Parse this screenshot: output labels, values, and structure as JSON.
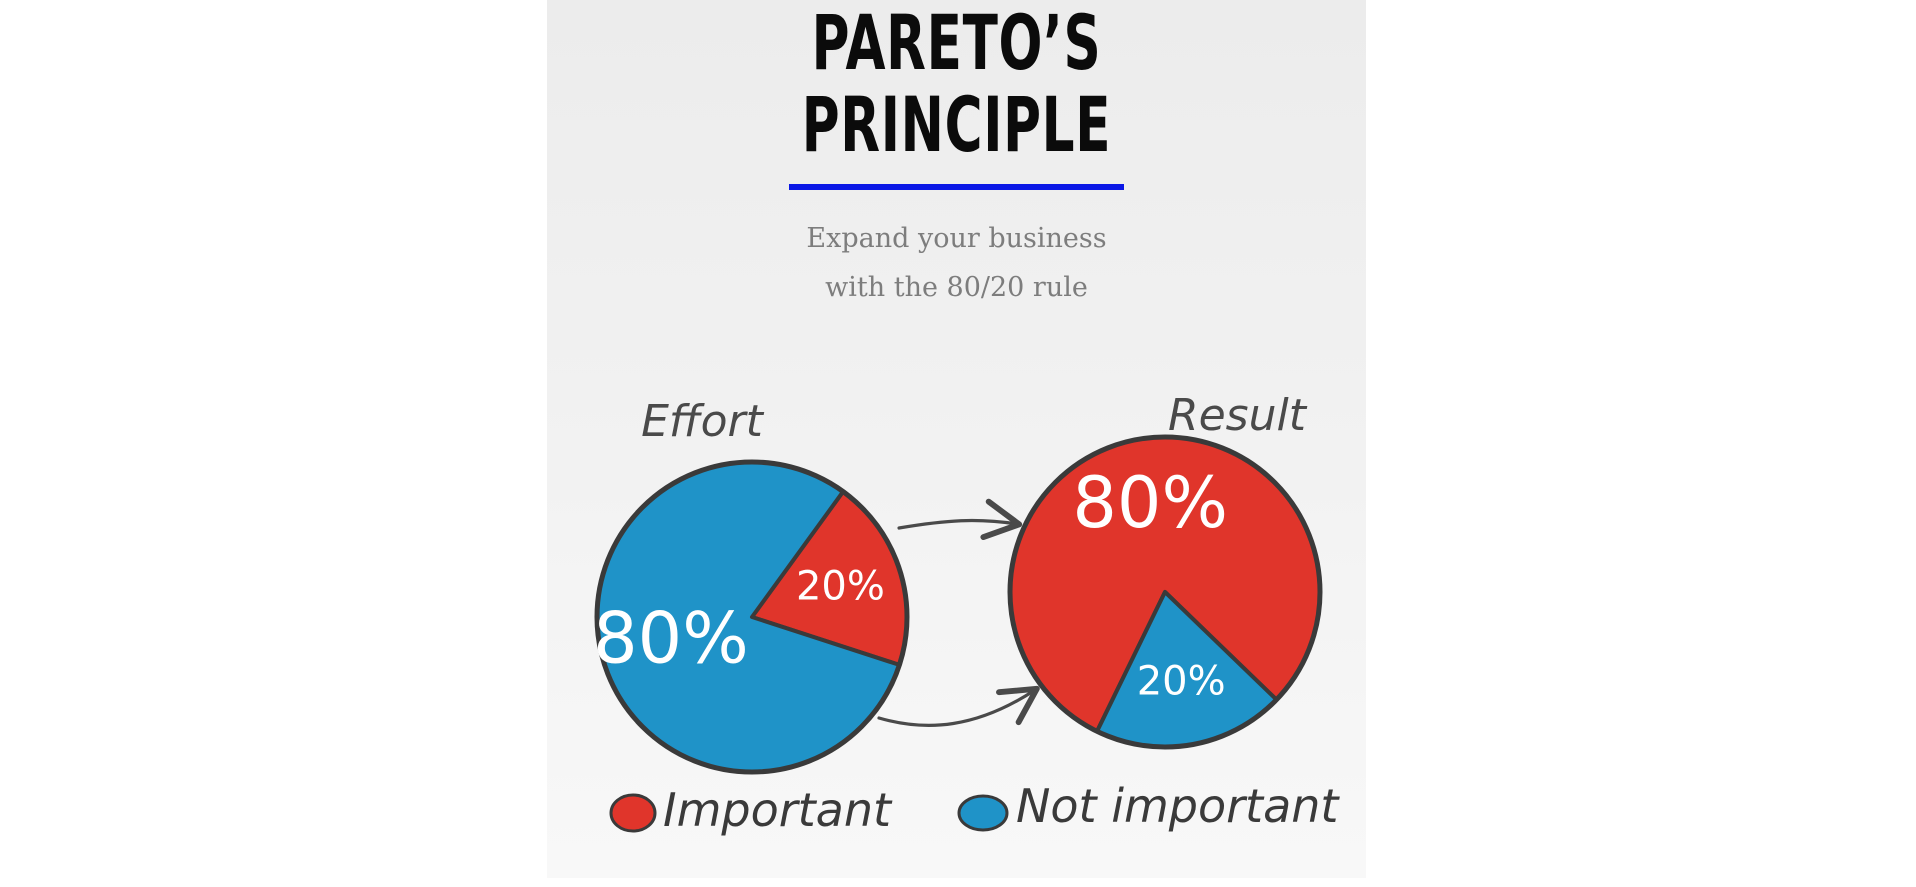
{
  "header": {
    "title_line1": "PARETO’S",
    "title_line2": "PRINCIPLE",
    "subtitle_line1": "Expand your business",
    "subtitle_line2": "with the 80/20 rule"
  },
  "colors": {
    "important": "#e0352b",
    "not_important": "#1f93c8",
    "outline": "#3a3a3a",
    "underline": "#0a17e6",
    "arrow": "#4a4a4a"
  },
  "chart_data": [
    {
      "type": "pie",
      "title": "Effort",
      "slices": [
        {
          "label": "Important",
          "value": 20,
          "display": "20%"
        },
        {
          "label": "Not important",
          "value": 80,
          "display": "80%"
        }
      ]
    },
    {
      "type": "pie",
      "title": "Result",
      "slices": [
        {
          "label": "Important",
          "value": 80,
          "display": "80%"
        },
        {
          "label": "Not important",
          "value": 20,
          "display": "20%"
        }
      ]
    }
  ],
  "legend": [
    {
      "label": "Important",
      "color_key": "important"
    },
    {
      "label": "Not important",
      "color_key": "not_important"
    }
  ]
}
